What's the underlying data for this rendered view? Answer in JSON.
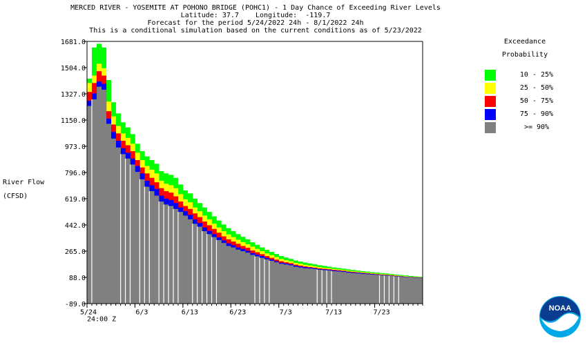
{
  "header": {
    "line1": "MERCED RIVER - YOSEMITE AT POHONO BRIDGE (POHC1) - 1 Day Chance of Exceeding River Levels",
    "line2": "Latitude: 37.7    Longitude:  -119.7",
    "line3": "Forecast for the period 5/24/2022 24h - 8/1/2022 24h",
    "line4": "This is a conditional simulation based on the current conditions as of 5/23/2022"
  },
  "yaxis_label": {
    "line1": "River Flow",
    "line2": "(CFSD)"
  },
  "legend": {
    "title1": "Exceedance",
    "title2": "Probability",
    "items": [
      {
        "label": "10 - 25%",
        "color": "#00ff00"
      },
      {
        "label": "25 - 50%",
        "color": "#ffff00"
      },
      {
        "label": "50 - 75%",
        "color": "#ff0000"
      },
      {
        "label": "75 - 90%",
        "color": "#0000ff"
      },
      {
        "label": ">= 90%",
        "color": "#808080"
      }
    ]
  },
  "logo": {
    "text": "NOAA",
    "icon": "noaa-logo"
  },
  "chart_data": {
    "type": "bar",
    "subtype": "stacked-exceedance",
    "ylim": [
      -89.0,
      1681.0
    ],
    "yticks": [
      "1681.0",
      "1504.0",
      "1327.0",
      "1150.0",
      "973.0",
      "796.0",
      "619.0",
      "442.0",
      "265.0",
      "88.0",
      "-89.0"
    ],
    "ytick_values": [
      1681.0,
      1504.0,
      1327.0,
      1150.0,
      973.0,
      796.0,
      619.0,
      442.0,
      265.0,
      88.0,
      -89.0
    ],
    "xticks": [
      {
        "label": "5/24",
        "day": 0
      },
      {
        "label": "6/3",
        "day": 10
      },
      {
        "label": "6/13",
        "day": 20
      },
      {
        "label": "6/23",
        "day": 30
      },
      {
        "label": "7/3",
        "day": 40
      },
      {
        "label": "7/13",
        "day": 50
      },
      {
        "label": "7/23",
        "day": 60
      }
    ],
    "x_sub_label": "24:00 Z",
    "ndays": 70,
    "grid": false,
    "series": [
      {
        "name": ">= 90%",
        "color": "#808080",
        "values": [
          1245,
          1290,
          1375,
          1355,
          1125,
          1025,
          965,
          920,
          890,
          850,
          800,
          750,
          700,
          670,
          640,
          600,
          580,
          570,
          550,
          530,
          505,
          480,
          450,
          430,
          400,
          380,
          360,
          340,
          320,
          300,
          290,
          275,
          265,
          255,
          240,
          230,
          220,
          210,
          200,
          190,
          180,
          175,
          170,
          160,
          155,
          150,
          148,
          145,
          140,
          137,
          135,
          130,
          128,
          125,
          120,
          118,
          115,
          112,
          110,
          107,
          105,
          102,
          100,
          98,
          95,
          92,
          90,
          88,
          86,
          84
        ]
      },
      {
        "name": "75 - 90%",
        "color": "#0000ff",
        "values": [
          1280,
          1330,
          1410,
          1395,
          1160,
          1070,
          1010,
          960,
          930,
          890,
          840,
          790,
          740,
          710,
          685,
          640,
          620,
          610,
          590,
          560,
          535,
          510,
          480,
          455,
          425,
          402,
          380,
          358,
          338,
          318,
          305,
          290,
          280,
          268,
          252,
          242,
          232,
          220,
          208,
          197,
          187,
          182,
          177,
          167,
          162,
          157,
          154,
          150,
          145,
          142,
          140,
          135,
          133,
          130,
          125,
          122,
          120,
          117,
          114,
          111,
          108,
          105,
          103,
          100,
          97,
          95,
          92,
          90,
          88,
          86
        ]
      },
      {
        "name": "50 - 75%",
        "color": "#ff0000",
        "values": [
          1340,
          1400,
          1480,
          1450,
          1210,
          1120,
          1060,
          1010,
          980,
          940,
          880,
          830,
          790,
          760,
          730,
          690,
          670,
          660,
          635,
          600,
          570,
          550,
          520,
          495,
          465,
          440,
          415,
          390,
          365,
          345,
          330,
          315,
          300,
          288,
          270,
          258,
          245,
          232,
          220,
          208,
          197,
          190,
          184,
          174,
          168,
          162,
          158,
          154,
          149,
          146,
          143,
          139,
          136,
          133,
          128,
          125,
          122,
          119,
          116,
          113,
          110,
          107,
          105,
          102,
          99,
          96,
          93,
          91,
          89,
          87
        ]
      },
      {
        "name": "25 - 50%",
        "color": "#ffff00",
        "values": [
          1400,
          1450,
          1530,
          1500,
          1275,
          1175,
          1110,
          1060,
          1030,
          990,
          930,
          880,
          840,
          815,
          790,
          740,
          720,
          710,
          690,
          650,
          615,
          595,
          560,
          535,
          505,
          480,
          450,
          425,
          400,
          378,
          360,
          342,
          326,
          312,
          295,
          280,
          265,
          250,
          238,
          225,
          212,
          204,
          197,
          186,
          180,
          173,
          168,
          163,
          157,
          153,
          150,
          145,
          142,
          138,
          133,
          130,
          127,
          124,
          120,
          117,
          114,
          111,
          108,
          105,
          102,
          99,
          96,
          93,
          91,
          89
        ]
      },
      {
        "name": "10 - 25%",
        "color": "#00ff00",
        "values": [
          1430,
          1640,
          1665,
          1640,
          1420,
          1270,
          1195,
          1135,
          1100,
          1055,
          990,
          940,
          905,
          880,
          855,
          805,
          790,
          780,
          760,
          715,
          675,
          655,
          620,
          590,
          560,
          530,
          500,
          472,
          445,
          420,
          400,
          380,
          362,
          345,
          325,
          308,
          290,
          274,
          260,
          246,
          232,
          222,
          213,
          202,
          195,
          188,
          182,
          176,
          170,
          165,
          160,
          155,
          151,
          147,
          142,
          138,
          134,
          130,
          127,
          123,
          120,
          117,
          114,
          111,
          107,
          104,
          101,
          98,
          95,
          92
        ]
      }
    ],
    "white_gap_days": [
      1,
      7,
      8,
      9,
      11,
      12,
      13,
      15,
      16,
      17,
      18,
      19,
      22,
      23,
      24,
      25,
      26,
      27,
      35,
      36,
      37,
      38,
      48,
      49,
      50,
      51,
      61,
      62,
      63,
      64,
      65
    ]
  }
}
